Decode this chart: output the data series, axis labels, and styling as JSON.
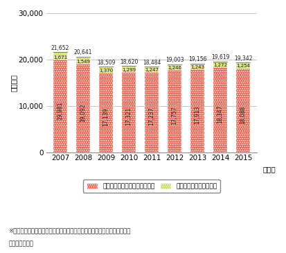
{
  "years": [
    "2007",
    "2008",
    "2009",
    "2010",
    "2011",
    "2012",
    "2013",
    "2014",
    "2015"
  ],
  "tv_values": [
    19981,
    19092,
    17139,
    17321,
    17237,
    17757,
    17913,
    18347,
    18088
  ],
  "radio_values": [
    1671,
    1549,
    1370,
    1299,
    1247,
    1246,
    1243,
    1272,
    1254
  ],
  "tv_totals": [
    21652,
    20641,
    18509,
    18620,
    18484,
    19003,
    19156,
    19619,
    19342
  ],
  "ylabel": "（億円）",
  "xlabel": "（年）",
  "ylim": [
    0,
    30000
  ],
  "yticks": [
    0,
    10000,
    20000,
    30000
  ],
  "legend_tv": "地上テレビジョン放送広告収入",
  "legend_radio": "地上ラジオ放送広告収入",
  "footnote1": "※地上テレビジョン広告費、地上ラジオ広告費を民間地上放送事業者の広告",
  "footnote2": "　収入とした。",
  "tv_color": "#e8503a",
  "radio_color": "#c8d44a",
  "bg_color": "#ffffff",
  "grid_color": "#bbbbbb",
  "bar_width": 0.62
}
